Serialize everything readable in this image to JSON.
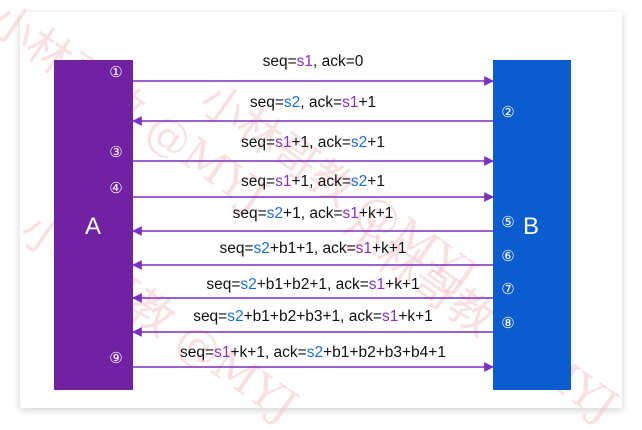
{
  "hosts": {
    "left": "A",
    "right": "B"
  },
  "colors": {
    "host_a": "#7122a3",
    "host_b": "#0b5ccf",
    "arrow": "#7a2fc0",
    "s1": "#8a2fc4",
    "s2": "#1a6fd6",
    "text": "#111111",
    "watermark": "#f4c9cd"
  },
  "watermark": "小林哥教 @MYJ",
  "messages": [
    {
      "step": "①",
      "direction": "A→B",
      "parts": [
        [
          "seq=",
          ""
        ],
        [
          "s1",
          "s1"
        ],
        [
          ", ack=0",
          ""
        ]
      ]
    },
    {
      "step": "②",
      "direction": "B→A",
      "parts": [
        [
          "seq=",
          ""
        ],
        [
          "s2",
          "s2"
        ],
        [
          ", ack=",
          ""
        ],
        [
          "s1",
          "s1"
        ],
        [
          "+1",
          ""
        ]
      ]
    },
    {
      "step": "③",
      "direction": "A→B",
      "parts": [
        [
          "seq=",
          ""
        ],
        [
          "s1",
          "s1"
        ],
        [
          "+1, ack=",
          ""
        ],
        [
          "s2",
          "s2"
        ],
        [
          "+1",
          ""
        ]
      ]
    },
    {
      "step": "④",
      "direction": "A→B",
      "parts": [
        [
          "seq=",
          ""
        ],
        [
          "s1",
          "s1"
        ],
        [
          "+1, ack=",
          ""
        ],
        [
          "s2",
          "s2"
        ],
        [
          "+1",
          ""
        ]
      ]
    },
    {
      "step": "⑤",
      "direction": "B→A",
      "parts": [
        [
          "seq=",
          ""
        ],
        [
          "s2",
          "s2"
        ],
        [
          "+1, ack=",
          ""
        ],
        [
          "s1",
          "s1"
        ],
        [
          "+k+1",
          ""
        ]
      ]
    },
    {
      "step": "⑥",
      "direction": "B→A",
      "parts": [
        [
          "seq=",
          ""
        ],
        [
          "s2",
          "s2"
        ],
        [
          "+b1+1, ack=",
          ""
        ],
        [
          "s1",
          "s1"
        ],
        [
          "+k+1",
          ""
        ]
      ]
    },
    {
      "step": "⑦",
      "direction": "B→A",
      "parts": [
        [
          "seq=",
          ""
        ],
        [
          "s2",
          "s2"
        ],
        [
          "+b1+b2+1, ack=",
          ""
        ],
        [
          "s1",
          "s1"
        ],
        [
          "+k+1",
          ""
        ]
      ]
    },
    {
      "step": "⑧",
      "direction": "B→A",
      "parts": [
        [
          "seq=",
          ""
        ],
        [
          "s2",
          "s2"
        ],
        [
          "+b1+b2+b3+1, ack=",
          ""
        ],
        [
          "s1",
          "s1"
        ],
        [
          "+k+1",
          ""
        ]
      ]
    },
    {
      "step": "⑨",
      "direction": "A→B",
      "parts": [
        [
          "seq=",
          ""
        ],
        [
          "s1",
          "s1"
        ],
        [
          "+k+1, ack=",
          ""
        ],
        [
          "s2",
          "s2"
        ],
        [
          "+b1+b2+b3+b4+1",
          ""
        ]
      ]
    }
  ]
}
